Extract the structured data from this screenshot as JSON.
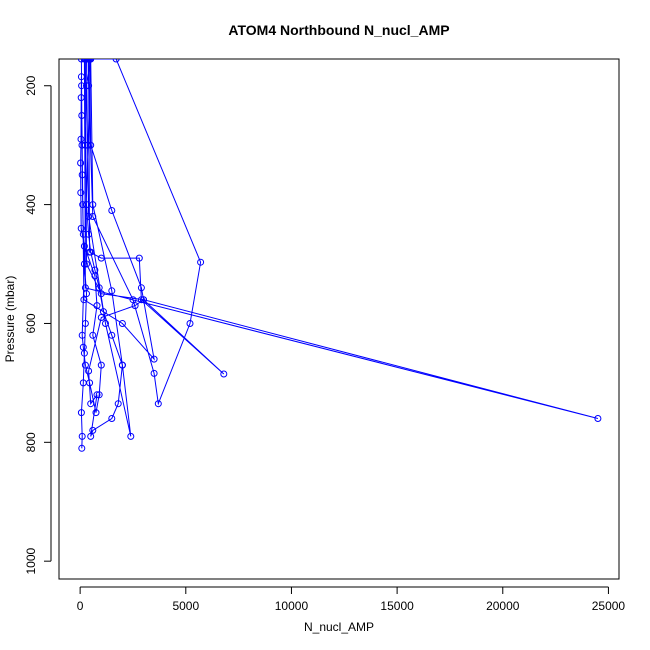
{
  "chart_data": {
    "type": "line",
    "title": "ATOM4 Northbound N_nucl_AMP",
    "xlabel": "N_nucl_AMP",
    "ylabel": "Pressure (mbar)",
    "xlim": [
      -1000,
      25500
    ],
    "ylim": [
      1030,
      155
    ],
    "y_inverted": true,
    "grid": false,
    "legend": "none",
    "x_ticks": [
      0,
      5000,
      10000,
      15000,
      20000,
      25000
    ],
    "x_tick_labels": [
      "0",
      "5000",
      "10000",
      "15000",
      "20000",
      "25000"
    ],
    "y_ticks": [
      200,
      400,
      600,
      800,
      1000
    ],
    "y_tick_labels": [
      "200",
      "400",
      "600",
      "800",
      "1000"
    ],
    "series_color": "#0000ff",
    "series": [
      {
        "values": [
          [
            80,
            810
          ],
          [
            100,
            790
          ],
          [
            60,
            750
          ],
          [
            150,
            700
          ],
          [
            200,
            650
          ],
          [
            250,
            600
          ],
          [
            300,
            550
          ],
          [
            200,
            500
          ],
          [
            150,
            450
          ],
          [
            120,
            400
          ],
          [
            100,
            350
          ],
          [
            90,
            300
          ],
          [
            80,
            250
          ],
          [
            70,
            200
          ],
          [
            60,
            155
          ],
          [
            500,
            155
          ],
          [
            300,
            200
          ],
          [
            250,
            300
          ],
          [
            300,
            400
          ],
          [
            400,
            450
          ],
          [
            500,
            480
          ],
          [
            700,
            510
          ],
          [
            900,
            540
          ],
          [
            1100,
            580
          ],
          [
            1500,
            620
          ],
          [
            2000,
            670
          ],
          [
            2400,
            790
          ],
          [
            1200,
            600
          ],
          [
            400,
            420
          ],
          [
            350,
            300
          ],
          [
            300,
            155
          ],
          [
            1700,
            155
          ],
          [
            5700,
            497
          ],
          [
            5200,
            600
          ],
          [
            3700,
            735
          ],
          [
            3500,
            684
          ],
          [
            2500,
            560
          ],
          [
            600,
            420
          ],
          [
            400,
            200
          ],
          [
            380,
            155
          ],
          [
            400,
            155
          ],
          [
            450,
            480
          ],
          [
            1000,
            490
          ],
          [
            2800,
            490
          ],
          [
            2900,
            560
          ],
          [
            6800,
            685
          ],
          [
            3000,
            560
          ],
          [
            1000,
            550
          ],
          [
            300,
            500
          ],
          [
            250,
            155
          ],
          [
            200,
            155
          ],
          [
            250,
            540
          ],
          [
            24500,
            760
          ],
          [
            3000,
            560
          ],
          [
            2600,
            570
          ],
          [
            1000,
            590
          ],
          [
            400,
            680
          ],
          [
            500,
            735
          ],
          [
            800,
            720
          ],
          [
            500,
            790
          ],
          [
            600,
            780
          ],
          [
            1500,
            760
          ],
          [
            1800,
            735
          ],
          [
            2000,
            670
          ],
          [
            1500,
            545
          ],
          [
            600,
            400
          ],
          [
            500,
            155
          ],
          [
            100,
            620
          ],
          [
            150,
            640
          ],
          [
            250,
            670
          ],
          [
            450,
            700
          ],
          [
            750,
            750
          ],
          [
            900,
            720
          ],
          [
            1000,
            670
          ],
          [
            600,
            620
          ],
          [
            800,
            570
          ],
          [
            700,
            520
          ],
          [
            200,
            470
          ],
          [
            50,
            440
          ],
          [
            30,
            380
          ],
          [
            20,
            330
          ],
          [
            40,
            290
          ],
          [
            50,
            220
          ],
          [
            60,
            185
          ],
          [
            180,
            560
          ],
          [
            2000,
            600
          ],
          [
            3500,
            660
          ],
          [
            2900,
            540
          ],
          [
            1500,
            410
          ],
          [
            500,
            300
          ],
          [
            450,
            155
          ]
        ]
      }
    ]
  }
}
